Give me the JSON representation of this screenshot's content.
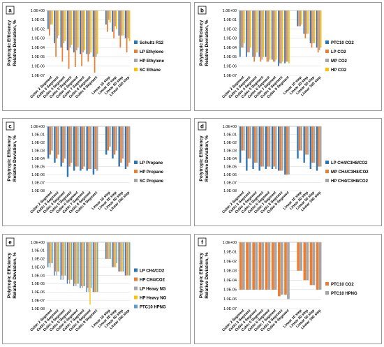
{
  "colors": {
    "blue": "#2e75b6",
    "orange": "#ed7d31",
    "gray": "#a5a5a5",
    "yellow": "#ffc000",
    "teal": "#5b9bd5"
  },
  "chart_data": [
    {
      "type": "bar",
      "panel_label": "a",
      "ylabel": [
        "Polytropic Efficiency",
        "Relative Deviation, %"
      ],
      "yscale": "log",
      "ylim": [
        1e-07,
        1
      ],
      "yticks": [
        "1.0E+00",
        "1.0E-01",
        "1.0E-02",
        "1.0E-03",
        "1.0E-04",
        "1.0E-05",
        "1.0E-06",
        "1.0E-07"
      ],
      "legend_position": "right",
      "categories": [
        "Cubic 2 Segment",
        "Cubic 3 Segment",
        "Cubic 4 Segment",
        "Cubic 5 Segment",
        "Cubic 6 Segment",
        "Cubic 7 Segment",
        "Cubic 8 Segment",
        "Cubic 9 Segment",
        "Linear 10 step",
        "Linear 20 step",
        "Linear 50 step",
        "Linear 100 step"
      ],
      "series": [
        {
          "name": "Schultz R12",
          "color": "#2e75b6",
          "values": [
            0.01,
            0.0003,
            0.0001,
            5e-05,
            3e-05,
            2e-05,
            2e-05,
            1e-05,
            0.03,
            0.005,
            0.002,
            0.001
          ]
        },
        {
          "name": "LP Ethylene",
          "color": "#ed7d31",
          "values": [
            0.002,
            1e-05,
            3e-06,
            5e-07,
            8e-07,
            1e-06,
            3e-06,
            2e-07,
            0.005,
            0.001,
            0.0001,
            3e-05
          ]
        },
        {
          "name": "HP Ethylene",
          "color": "#a5a5a5",
          "values": [
            0.03,
            0.001,
            0.0003,
            0.0001,
            5e-05,
            3e-05,
            2e-05,
            1e-05,
            0.1,
            0.02,
            0.002,
            0.001
          ]
        },
        {
          "name": "SC Ethane",
          "color": "#ffc000",
          "values": [
            0.03,
            0.002,
            0.0005,
            0.0002,
            0.0001,
            5e-05,
            3e-05,
            2e-05,
            0.05,
            0.01,
            0.002,
            0.0005
          ]
        }
      ]
    },
    {
      "type": "bar",
      "panel_label": "b",
      "ylabel": [
        "Polytropic Efficiency",
        "Relative Deviation, %"
      ],
      "yscale": "log",
      "ylim": [
        1e-07,
        1
      ],
      "yticks": [
        "1.0E+00",
        "1.0E-01",
        "1.0E-02",
        "1.0E-03",
        "1.0E-04",
        "1.0E-05",
        "1.0E-06",
        "1.0E-07"
      ],
      "legend_position": "right",
      "categories": [
        "Cubic 2 Segment",
        "Cubic 3 Segment",
        "Cubic 4 Segment",
        "Cubic 5 Segment",
        "Cubic 6 Segment",
        "Cubic 7 Segment",
        "Cubic 8 Segment",
        "Cubic 9 Segment",
        "Linear 10 step",
        "Linear 20 step",
        "Linear 50 step",
        "Linear 100 step"
      ],
      "series": [
        {
          "name": "PTC10 CO2",
          "color": "#2e75b6",
          "values": [
            1e-05,
            1e-05,
            1e-05,
            1e-05,
            1e-05,
            5e-06,
            1e-06,
            2e-06,
            0.02,
            0.003,
            0.0003,
            0.0001
          ]
        },
        {
          "name": "LP CO2",
          "color": "#ed7d31",
          "values": [
            0.0001,
            3e-05,
            3e-06,
            3e-06,
            3e-06,
            3e-06,
            2e-06,
            3e-06,
            0.02,
            0.001,
            0.0001,
            3e-05
          ]
        },
        {
          "name": "MP CO2",
          "color": "#a5a5a5",
          "values": [
            0.0001,
            3e-05,
            1e-05,
            5e-06,
            3e-06,
            3e-06,
            2e-06,
            3e-06,
            0.02,
            0.003,
            0.0003,
            5e-05
          ]
        },
        {
          "name": "HP CO2",
          "color": "#ffc000",
          "values": [
            0.0003,
            0.0001,
            3e-05,
            1e-05,
            5e-06,
            5e-06,
            3e-06,
            2e-06,
            0.03,
            0.003,
            0.0003,
            0.0001
          ]
        }
      ]
    },
    {
      "type": "bar",
      "panel_label": "c",
      "ylabel": [
        "Polytropic Efficiency",
        "Relative Deviation, %"
      ],
      "yscale": "log",
      "ylim": [
        1e-08,
        1
      ],
      "yticks": [
        "1.0E+00",
        "1.0E-01",
        "1.0E-02",
        "1.0E-03",
        "1.0E-04",
        "1.0E-05",
        "1.0E-06",
        "1.0E-07",
        "1.0E-08"
      ],
      "legend_position": "right",
      "categories": [
        "Cubic 2 Segment",
        "Cubic 3 Segment",
        "Cubic 4 Segment",
        "Cubic 5 Segment",
        "Cubic 6 Segment",
        "Cubic 7 Segment",
        "Cubic 8 Segment",
        "Cubic 9 Segment",
        "Linear 10 step",
        "Linear 20 step",
        "Linear 50 step",
        "Linear 100 step"
      ],
      "series": [
        {
          "name": "LP Propane",
          "color": "#2e75b6",
          "values": [
            0.0001,
            3e-05,
            1e-05,
            5e-07,
            3e-06,
            3e-06,
            3e-06,
            1e-06,
            0.0003,
            0.0001,
            1e-05,
            5e-06
          ]
        },
        {
          "name": "HP Propane",
          "color": "#ed7d31",
          "values": [
            0.0003,
            0.0001,
            3e-05,
            1e-05,
            1e-05,
            5e-06,
            5e-06,
            5e-06,
            0.001,
            0.0003,
            3e-05,
            1e-05
          ]
        },
        {
          "name": "SC Propane",
          "color": "#a5a5a5",
          "values": [
            0.001,
            0.0003,
            0.0001,
            3e-05,
            1e-05,
            1e-05,
            5e-06,
            3e-06,
            0.003,
            0.001,
            0.0001,
            3e-05
          ]
        }
      ]
    },
    {
      "type": "bar",
      "panel_label": "d",
      "ylabel": [
        "Polytropic Efficiency",
        "Relative Deviation, %"
      ],
      "yscale": "log",
      "ylim": [
        1e-08,
        1
      ],
      "yticks": [
        "1.0E+00",
        "1.0E-01",
        "1.0E-02",
        "1.0E-03",
        "1.0E-04",
        "1.0E-05",
        "1.0E-06",
        "1.0E-07",
        "1.0E-08"
      ],
      "legend_position": "right",
      "categories": [
        "Cubic 2 Segment",
        "Cubic 3 Segment",
        "Cubic 4 Segment",
        "Cubic 5 Segment",
        "Cubic 6 Segment",
        "Cubic 7 Segment",
        "Cubic 8 Segment",
        "Cubic 9 Segment",
        "Linear 10 step",
        "Linear 20 step",
        "Linear 50 step",
        "Linear 100 step"
      ],
      "series": [
        {
          "name": "LP CH4/C3H8/CO2",
          "color": "#2e75b6",
          "values": [
            3e-05,
            3e-06,
            5e-06,
            3e-06,
            5e-06,
            5e-06,
            3e-06,
            1e-06,
            0.0001,
            3e-05,
            5e-06,
            3e-06
          ]
        },
        {
          "name": "MP CH4/C3H8/CO2",
          "color": "#ed7d31",
          "values": [
            0.001,
            0.0001,
            3e-05,
            1e-05,
            1e-05,
            1e-05,
            3e-06,
            1e-06,
            0.001,
            0.0003,
            3e-05,
            1e-05
          ]
        },
        {
          "name": "HP CH4/C3H8/CO2",
          "color": "#a5a5a5",
          "values": [
            0.001,
            0.0001,
            3e-05,
            1e-05,
            1e-05,
            5e-06,
            3e-06,
            1e-06,
            0.001,
            0.0003,
            3e-05,
            1e-05
          ]
        }
      ]
    },
    {
      "type": "bar",
      "panel_label": "e",
      "ylabel": [
        "Polytropic Efficiency",
        "Relative Deviation, %"
      ],
      "yscale": "log",
      "ylim": [
        1e-08,
        1
      ],
      "yticks": [
        "1.0E+00",
        "1.0E-01",
        "1.0E-02",
        "1.0E-03",
        "1.0E-04",
        "1.0E-05",
        "1.0E-06",
        "1.0E-07",
        "1.0E-08"
      ],
      "legend_position": "right",
      "categories": [
        "Cubic 2 Segment",
        "Cubic 3 Segment",
        "Cubic 4 Segment",
        "Cubic 5 Segment",
        "Cubic 6 Segment",
        "Cubic 7 Segment",
        "Cubic 8 Segment",
        "Cubic 9 Segment",
        "Linear 10 step",
        "Linear 20 step",
        "Linear 50 step",
        "Linear 100 step"
      ],
      "series": [
        {
          "name": "LP CH4/CO2",
          "color": "#2e75b6",
          "values": [
            0.001,
            0.0001,
            3e-05,
            1e-05,
            5e-06,
            3e-06,
            1e-06,
            1e-06,
            0.01,
            0.001,
            0.0003,
            0.0001
          ]
        },
        {
          "name": "HP CH4/CO2",
          "color": "#ed7d31",
          "values": [
            0.003,
            0.0003,
            0.0001,
            3e-05,
            1e-05,
            5e-06,
            3e-06,
            1e-06,
            0.01,
            0.001,
            0.0003,
            0.0001
          ]
        },
        {
          "name": "LP Heavy NG",
          "color": "#a5a5a5",
          "values": [
            0.001,
            0.0001,
            3e-05,
            1e-05,
            5e-06,
            3e-06,
            1e-06,
            1e-06,
            0.01,
            0.001,
            0.0003,
            0.0001
          ]
        },
        {
          "name": "HP Heavy NG",
          "color": "#ffc000",
          "values": [
            0.003,
            0.0003,
            0.0001,
            3e-05,
            1e-05,
            5e-06,
            3e-08,
            1e-06,
            0.01,
            0.001,
            0.0003,
            0.0001
          ]
        },
        {
          "name": "PTC10 HPNG",
          "color": "#5b9bd5",
          "values": [
            0.003,
            0.0003,
            0.0001,
            3e-05,
            1e-05,
            5e-06,
            3e-06,
            1e-06,
            0.01,
            0.003,
            0.0003,
            0.0001
          ]
        }
      ]
    },
    {
      "type": "bar",
      "panel_label": "f",
      "ylabel": [
        "Polytropic Efficiency",
        "Relative Deviation, %"
      ],
      "yscale": "log",
      "ylim": [
        1e-07,
        1
      ],
      "yticks": [
        "1.0E+00",
        "1.0E-01",
        "1.0E-02",
        "1.0E-03",
        "1.0E-04",
        "1.0E-05",
        "1.0E-06",
        "1.0E-07"
      ],
      "legend_position": "right",
      "categories": [
        "Cubic 2 Segment",
        "Cubic 3 Segment",
        "Cubic 4 Segment",
        "Cubic 5 Segment",
        "Cubic 6 Segment",
        "Cubic 7 Segment",
        "Cubic 8 Segment",
        "Cubic 9 Segment",
        "Linear 10 step",
        "Linear 20 step",
        "Linear 50 step",
        "Linear 100 step"
      ],
      "series": [
        {
          "name": "PTC10 CO2",
          "color": "#ed7d31",
          "values": [
            1e-05,
            1e-05,
            1e-05,
            1e-05,
            1e-05,
            1e-05,
            2e-06,
            3e-06,
            0.001,
            0.0001,
            3e-05,
            1e-05
          ]
        },
        {
          "name": "PTC10 HPNG",
          "color": "#a5a5a5",
          "values": [
            1e-05,
            1e-05,
            1e-05,
            1e-05,
            1e-05,
            1e-05,
            3e-06,
            1e-06,
            0.001,
            0.0001,
            3e-05,
            1e-05
          ]
        }
      ]
    }
  ]
}
